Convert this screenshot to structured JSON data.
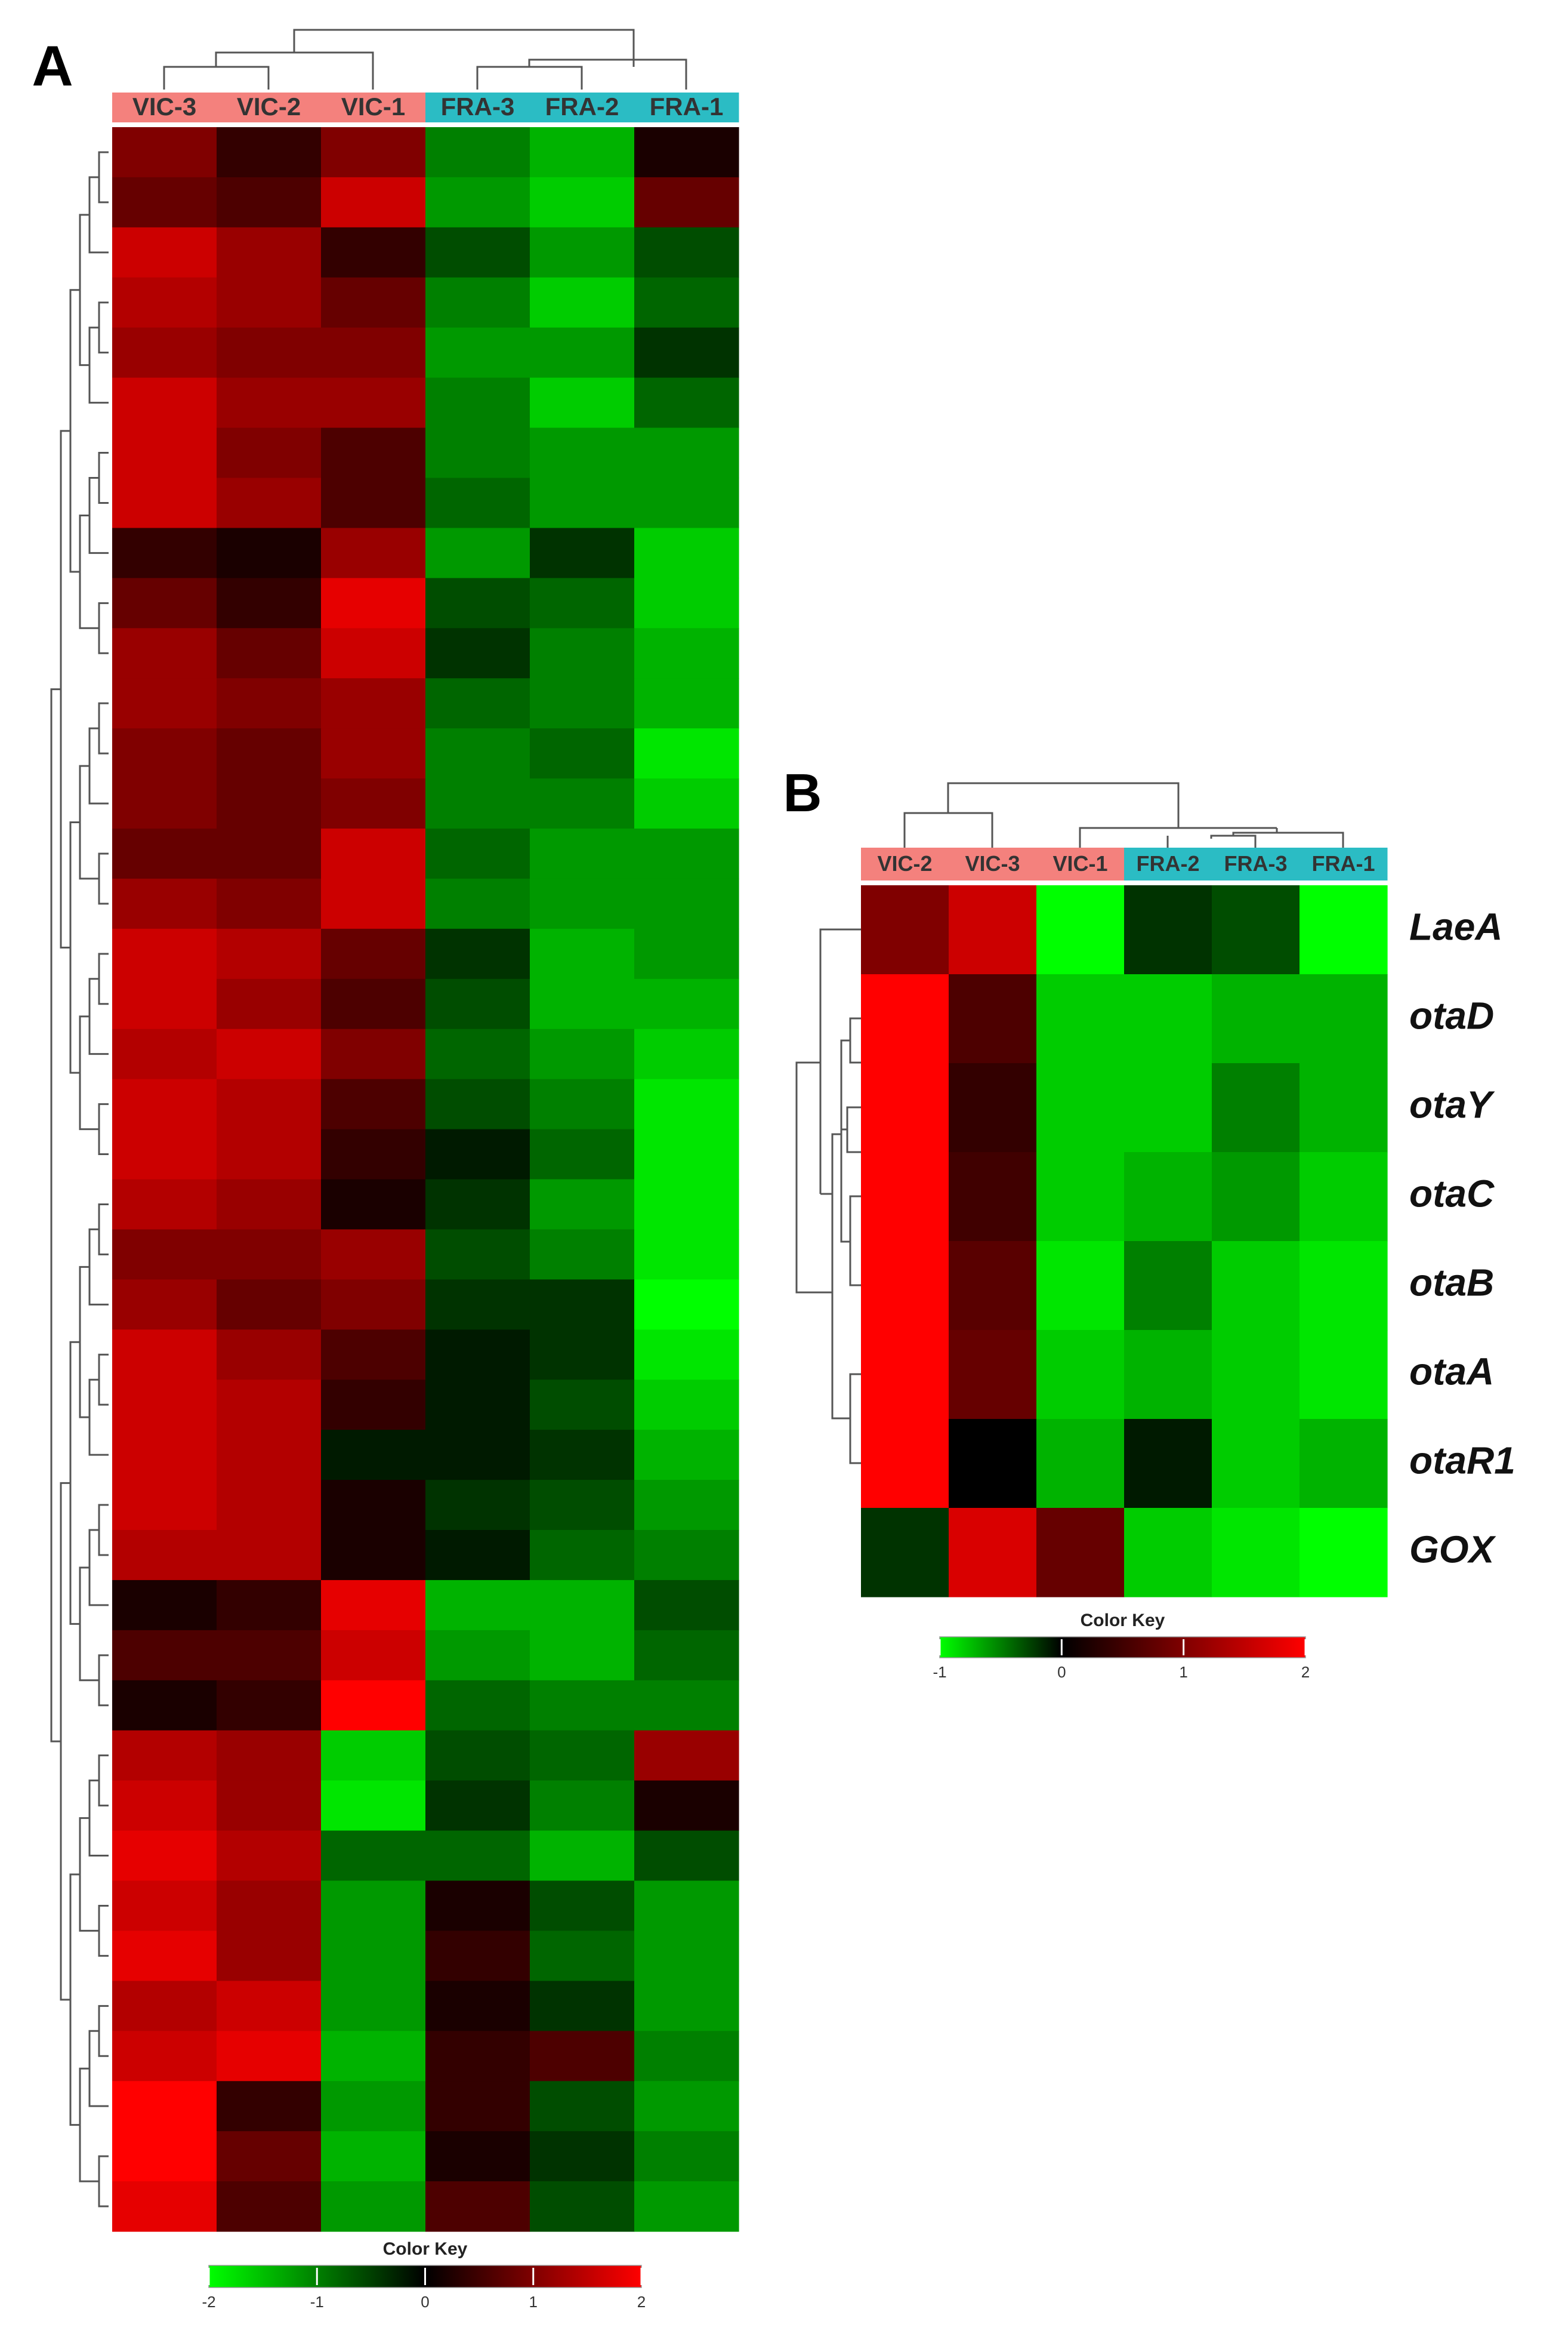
{
  "chart_data": [
    {
      "type": "heatmap",
      "panel_label": "A",
      "columns": [
        "VIC-3",
        "VIC-2",
        "VIC-1",
        "FRA-3",
        "FRA-2",
        "FRA-1"
      ],
      "column_colors": [
        "#f4817d",
        "#f4817d",
        "#f4817d",
        "#2bbcc4",
        "#2bbcc4",
        "#2bbcc4"
      ],
      "colors": {
        "low": "#00ff00",
        "mid": "#000000",
        "high": "#ff0000"
      },
      "values": [
        [
          1.0,
          0.4,
          1.0,
          -1.0,
          -1.4,
          0.2
        ],
        [
          0.8,
          0.6,
          1.6,
          -1.2,
          -1.6,
          0.8
        ],
        [
          1.6,
          1.2,
          0.4,
          -0.6,
          -1.2,
          -0.6
        ],
        [
          1.4,
          1.2,
          0.8,
          -1.0,
          -1.6,
          -0.8
        ],
        [
          1.2,
          1.0,
          1.0,
          -1.2,
          -1.2,
          -0.4
        ],
        [
          1.6,
          1.2,
          1.2,
          -1.0,
          -1.6,
          -0.8
        ],
        [
          1.6,
          1.0,
          0.6,
          -1.0,
          -1.2,
          -1.2
        ],
        [
          1.6,
          1.2,
          0.6,
          -0.8,
          -1.2,
          -1.2
        ],
        [
          0.4,
          0.2,
          1.2,
          -1.2,
          -0.4,
          -1.6
        ],
        [
          0.8,
          0.4,
          1.8,
          -0.6,
          -0.8,
          -1.6
        ],
        [
          1.2,
          0.8,
          1.6,
          -0.4,
          -1.0,
          -1.4
        ],
        [
          1.2,
          1.0,
          1.2,
          -0.8,
          -1.0,
          -1.4
        ],
        [
          1.0,
          0.8,
          1.2,
          -1.0,
          -0.8,
          -1.8
        ],
        [
          1.0,
          0.8,
          1.0,
          -1.0,
          -1.0,
          -1.6
        ],
        [
          0.8,
          0.8,
          1.6,
          -0.8,
          -1.2,
          -1.2
        ],
        [
          1.2,
          1.0,
          1.6,
          -1.0,
          -1.2,
          -1.2
        ],
        [
          1.6,
          1.4,
          0.8,
          -0.4,
          -1.4,
          -1.2
        ],
        [
          1.6,
          1.2,
          0.6,
          -0.6,
          -1.4,
          -1.4
        ],
        [
          1.4,
          1.6,
          1.0,
          -0.8,
          -1.2,
          -1.6
        ],
        [
          1.6,
          1.4,
          0.6,
          -0.6,
          -1.0,
          -1.8
        ],
        [
          1.6,
          1.4,
          0.4,
          -0.2,
          -0.8,
          -1.8
        ],
        [
          1.4,
          1.2,
          0.2,
          -0.4,
          -1.2,
          -1.8
        ],
        [
          1.0,
          1.0,
          1.2,
          -0.6,
          -1.0,
          -1.8
        ],
        [
          1.2,
          0.8,
          1.0,
          -0.4,
          -0.4,
          -2.0
        ],
        [
          1.6,
          1.2,
          0.6,
          -0.2,
          -0.4,
          -1.8
        ],
        [
          1.6,
          1.4,
          0.4,
          -0.2,
          -0.6,
          -1.6
        ],
        [
          1.6,
          1.4,
          -0.2,
          -0.2,
          -0.4,
          -1.4
        ],
        [
          1.6,
          1.4,
          0.2,
          -0.4,
          -0.6,
          -1.2
        ],
        [
          1.4,
          1.4,
          0.2,
          -0.2,
          -0.8,
          -1.0
        ],
        [
          0.2,
          0.4,
          1.8,
          -1.4,
          -1.4,
          -0.6
        ],
        [
          0.6,
          0.6,
          1.6,
          -1.2,
          -1.4,
          -0.8
        ],
        [
          0.2,
          0.4,
          2.0,
          -0.8,
          -1.0,
          -1.0
        ],
        [
          1.4,
          1.2,
          -1.6,
          -0.6,
          -0.8,
          1.2
        ],
        [
          1.6,
          1.2,
          -1.8,
          -0.4,
          -1.0,
          0.2
        ],
        [
          1.8,
          1.4,
          -0.8,
          -0.8,
          -1.4,
          -0.6
        ],
        [
          1.6,
          1.2,
          -1.2,
          0.2,
          -0.6,
          -1.2
        ],
        [
          1.8,
          1.2,
          -1.2,
          0.4,
          -0.8,
          -1.2
        ],
        [
          1.4,
          1.6,
          -1.2,
          0.2,
          -0.4,
          -1.2
        ],
        [
          1.6,
          1.8,
          -1.4,
          0.4,
          0.6,
          -1.0
        ],
        [
          2.0,
          0.4,
          -1.2,
          0.4,
          -0.6,
          -1.2
        ],
        [
          2.0,
          0.8,
          -1.4,
          0.2,
          -0.4,
          -1.0
        ],
        [
          1.8,
          0.6,
          -1.2,
          0.6,
          -0.6,
          -1.2
        ]
      ],
      "color_key_title": "Color Key",
      "color_lim": [
        -2,
        2
      ],
      "color_ticks": [
        -2,
        -1,
        0,
        1,
        2
      ]
    },
    {
      "type": "heatmap",
      "panel_label": "B",
      "columns": [
        "VIC-2",
        "VIC-3",
        "VIC-1",
        "FRA-2",
        "FRA-3",
        "FRA-1"
      ],
      "column_colors": [
        "#f4817d",
        "#f4817d",
        "#f4817d",
        "#2bbcc4",
        "#2bbcc4",
        "#2bbcc4"
      ],
      "rows": [
        "LaeA",
        "otaD",
        "otaY",
        "otaC",
        "otaB",
        "otaA",
        "otaR1",
        "GOX"
      ],
      "colors": {
        "low": "#00ff00",
        "mid": "#000000",
        "high": "#ff0000"
      },
      "values": [
        [
          1.0,
          1.6,
          -1.0,
          -0.2,
          -0.3,
          -1.0
        ],
        [
          2.0,
          0.6,
          -0.8,
          -0.8,
          -0.7,
          -0.7
        ],
        [
          2.0,
          0.4,
          -0.8,
          -0.8,
          -0.5,
          -0.7
        ],
        [
          2.0,
          0.5,
          -0.8,
          -0.7,
          -0.6,
          -0.8
        ],
        [
          2.0,
          0.7,
          -0.9,
          -0.5,
          -0.8,
          -0.9
        ],
        [
          2.0,
          0.8,
          -0.8,
          -0.7,
          -0.8,
          -0.9
        ],
        [
          2.0,
          0.0,
          -0.7,
          -0.1,
          -0.8,
          -0.7
        ],
        [
          -0.2,
          1.7,
          0.8,
          -0.8,
          -0.9,
          -1.0
        ]
      ],
      "color_key_title": "Color Key",
      "color_lim": [
        -1,
        2
      ],
      "color_ticks": [
        -1,
        0,
        1,
        2
      ]
    }
  ]
}
